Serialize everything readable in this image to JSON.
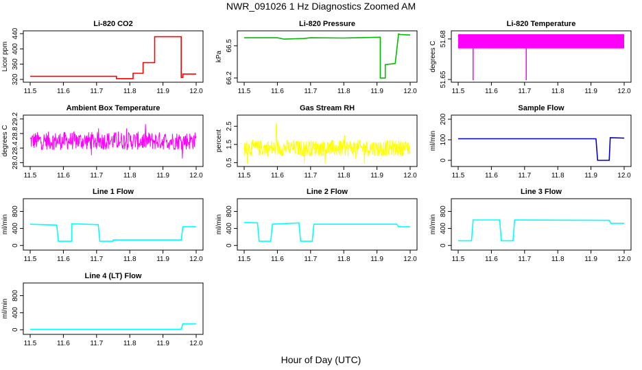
{
  "figure": {
    "title": "NWR_091026  1 Hz Diagnostics Zoomed AM",
    "xlabel": "Hour of Day (UTC)"
  },
  "chart_data": [
    {
      "type": "line",
      "title": "Li-820 CO2",
      "ylabel": "Licor ppm",
      "color": "#ff0000",
      "xlim": [
        11.5,
        12.0
      ],
      "xticks": [
        "11.5",
        "11.6",
        "11.7",
        "11.8",
        "11.9",
        "12.0"
      ],
      "ylim": [
        318,
        442
      ],
      "yticks": [
        "320",
        "360",
        "400",
        "440"
      ],
      "series": [
        {
          "name": "CO2",
          "x": [
            11.5,
            11.76,
            11.76,
            11.81,
            11.81,
            11.84,
            11.84,
            11.875,
            11.875,
            11.955,
            11.955,
            11.96,
            11.96,
            12.0
          ],
          "y": [
            328,
            328,
            322,
            322,
            336,
            336,
            364,
            364,
            432,
            432,
            325,
            325,
            334,
            334
          ]
        }
      ]
    },
    {
      "type": "line",
      "title": "Li-820 Pressure",
      "ylabel": "kPa",
      "color": "#00bb00",
      "xlim": [
        11.5,
        12.0
      ],
      "xticks": [
        "11.5",
        "11.6",
        "11.7",
        "11.8",
        "11.9",
        "12.0"
      ],
      "ylim": [
        66.18,
        66.62
      ],
      "yticks": [
        "66.2",
        "66.5"
      ],
      "series": [
        {
          "name": "Pressure",
          "x": [
            11.5,
            11.6,
            11.62,
            11.68,
            11.7,
            11.8,
            11.91,
            11.91,
            11.925,
            11.925,
            11.955,
            11.965,
            11.97,
            12.0
          ],
          "y": [
            66.575,
            66.575,
            66.562,
            66.568,
            66.575,
            66.572,
            66.58,
            66.2,
            66.2,
            66.325,
            66.335,
            66.61,
            66.605,
            66.6
          ]
        }
      ]
    },
    {
      "type": "line",
      "title": "Li-820 Temperature",
      "ylabel": "degrees C",
      "color": "#ff00ff",
      "xlim": [
        11.5,
        12.0
      ],
      "xticks": [
        "11.5",
        "11.6",
        "11.7",
        "11.8",
        "11.9",
        "12.0"
      ],
      "ylim": [
        51.6495,
        51.6845
      ],
      "yticks": [
        "51.65",
        "51.68"
      ],
      "band": {
        "low": 51.673,
        "high": 51.6835,
        "x0": 11.5,
        "x1": 12.0
      },
      "spikes": [
        {
          "x": 11.545,
          "y": 51.6495
        },
        {
          "x": 11.705,
          "y": 51.6495
        }
      ]
    },
    {
      "type": "line",
      "title": "Ambient Box Temperature",
      "ylabel": "degrees C",
      "color": "#ff00ff",
      "xlim": [
        11.5,
        12.0
      ],
      "xticks": [
        "11.5",
        "11.6",
        "11.7",
        "11.8",
        "11.9",
        "12.0"
      ],
      "ylim": [
        27.95,
        29.25
      ],
      "yticks": [
        "28.0",
        "28.4",
        "28.8",
        "29.2"
      ],
      "noise": {
        "center": 28.6,
        "amplitude": 0.25,
        "min": 27.95,
        "max": 29.1
      }
    },
    {
      "type": "line",
      "title": "Gas Stream RH",
      "ylabel": "percent",
      "color": "#ffff00",
      "xlim": [
        11.5,
        12.0
      ],
      "xticks": [
        "11.5",
        "11.6",
        "11.7",
        "11.8",
        "11.9",
        "12.0"
      ],
      "ylim": [
        0.4,
        3.0
      ],
      "yticks": [
        "0.5",
        "1.5",
        "2.5"
      ],
      "noise": {
        "center": 1.3,
        "amplitude": 0.45,
        "min": 0.45,
        "max": 2.9
      }
    },
    {
      "type": "line",
      "title": "Sample Flow",
      "ylabel": "ml/min",
      "color": "#0000cc",
      "xlim": [
        11.5,
        12.0
      ],
      "xticks": [
        "11.5",
        "11.6",
        "11.7",
        "11.8",
        "11.9",
        "12.0"
      ],
      "ylim": [
        -20,
        210
      ],
      "yticks": [
        "0",
        "100",
        "200"
      ],
      "series": [
        {
          "name": "Sample",
          "x": [
            11.5,
            11.915,
            11.92,
            11.955,
            11.958,
            12.0
          ],
          "y": [
            105,
            105,
            0,
            0,
            110,
            108
          ]
        }
      ]
    },
    {
      "type": "line",
      "title": "Line 1 Flow",
      "ylabel": "ml/min",
      "color": "#00ffff",
      "xlim": [
        11.5,
        12.0
      ],
      "xticks": [
        "11.5",
        "11.6",
        "11.7",
        "11.8",
        "11.9",
        "12.0"
      ],
      "ylim": [
        -60,
        1050
      ],
      "yticks": [
        "0",
        "400",
        "800"
      ],
      "series": [
        {
          "name": "Line1",
          "x": [
            11.5,
            11.58,
            11.585,
            11.625,
            11.625,
            11.705,
            11.71,
            11.75,
            11.75,
            11.955,
            11.96,
            12.0
          ],
          "y": [
            500,
            480,
            100,
            100,
            510,
            490,
            100,
            100,
            130,
            130,
            440,
            440
          ]
        }
      ]
    },
    {
      "type": "line",
      "title": "Line 2 Flow",
      "ylabel": "ml/min",
      "color": "#00ffff",
      "xlim": [
        11.5,
        12.0
      ],
      "xticks": [
        "11.5",
        "11.6",
        "11.7",
        "11.8",
        "11.9",
        "12.0"
      ],
      "ylim": [
        -60,
        1050
      ],
      "yticks": [
        "0",
        "400",
        "800"
      ],
      "series": [
        {
          "name": "Line2",
          "x": [
            11.5,
            11.54,
            11.545,
            11.58,
            11.585,
            11.665,
            11.67,
            11.705,
            11.71,
            11.96,
            11.965,
            12.0
          ],
          "y": [
            540,
            530,
            100,
            100,
            500,
            530,
            100,
            100,
            500,
            500,
            440,
            440
          ]
        }
      ]
    },
    {
      "type": "line",
      "title": "Line 3 Flow",
      "ylabel": "ml/min",
      "color": "#00ffff",
      "xlim": [
        11.5,
        12.0
      ],
      "xticks": [
        "11.5",
        "11.6",
        "11.7",
        "11.8",
        "11.9",
        "12.0"
      ],
      "ylim": [
        -60,
        1050
      ],
      "yticks": [
        "0",
        "400",
        "800"
      ],
      "series": [
        {
          "name": "Line3",
          "x": [
            11.5,
            11.54,
            11.545,
            11.625,
            11.63,
            11.665,
            11.67,
            11.955,
            11.96,
            12.0
          ],
          "y": [
            110,
            110,
            600,
            600,
            110,
            110,
            600,
            590,
            520,
            520
          ]
        }
      ]
    },
    {
      "type": "line",
      "title": "Line 4 (LT) Flow",
      "ylabel": "ml/min",
      "color": "#00ffff",
      "xlim": [
        11.5,
        12.0
      ],
      "xticks": [
        "11.5",
        "11.6",
        "11.7",
        "11.8",
        "11.9",
        "12.0"
      ],
      "ylim": [
        -60,
        1050
      ],
      "yticks": [
        "0",
        "400",
        "800"
      ],
      "series": [
        {
          "name": "Line4",
          "x": [
            11.5,
            11.955,
            11.96,
            12.0
          ],
          "y": [
            10,
            10,
            140,
            140
          ]
        }
      ]
    }
  ]
}
